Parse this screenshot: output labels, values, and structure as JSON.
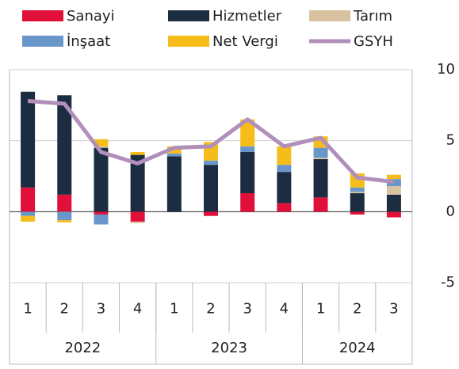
{
  "chart_data": {
    "type": "bar",
    "categories": [
      "1",
      "2",
      "3",
      "4",
      "1",
      "2",
      "3",
      "4",
      "1",
      "2",
      "3"
    ],
    "groups": [
      {
        "label": "2022",
        "count": 4
      },
      {
        "label": "2023",
        "count": 4
      },
      {
        "label": "2024",
        "count": 3
      }
    ],
    "series": [
      {
        "name": "Sanayi",
        "color": "#e0103a",
        "values": [
          1.7,
          1.2,
          -0.2,
          -0.7,
          0,
          -0.3,
          1.3,
          0.6,
          1.0,
          -0.2,
          -0.4
        ]
      },
      {
        "name": "Hizmetler",
        "color": "#1c2d42",
        "values": [
          6.75,
          7.0,
          4.5,
          4.0,
          3.9,
          3.3,
          2.9,
          2.2,
          2.7,
          1.3,
          1.2
        ]
      },
      {
        "name": "Tarım",
        "color": "#d9c2a0",
        "values": [
          0,
          0,
          0.1,
          -0.1,
          0,
          0,
          0,
          0,
          0.1,
          0.1,
          0.6
        ]
      },
      {
        "name": "İnşaat",
        "color": "#6a97c9",
        "values": [
          -0.3,
          -0.6,
          -0.7,
          0,
          0.2,
          0.3,
          0.4,
          0.5,
          0.7,
          0.3,
          0.5
        ]
      },
      {
        "name": "Net Vergi",
        "color": "#f5bc1a",
        "values": [
          -0.4,
          -0.15,
          0.5,
          0.2,
          0.5,
          1.3,
          1.9,
          1.3,
          0.8,
          1.0,
          0.3
        ]
      },
      {
        "name": "GSYH",
        "color": "#b08fbb",
        "type": "line",
        "values": [
          7.8,
          7.6,
          4.2,
          3.4,
          4.5,
          4.6,
          6.5,
          4.6,
          5.2,
          2.4,
          2.1
        ]
      }
    ],
    "ylim": [
      -5,
      10
    ],
    "yticks": [
      -5,
      0,
      5,
      10
    ],
    "grid": true
  }
}
